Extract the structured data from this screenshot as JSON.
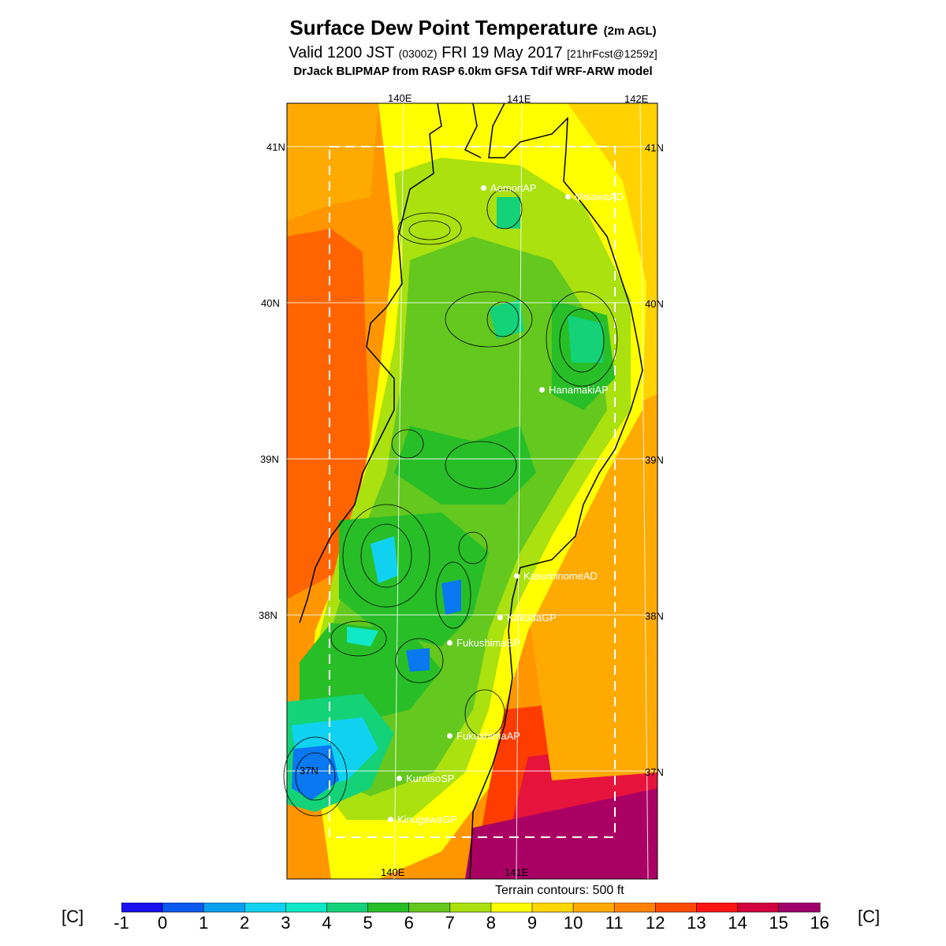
{
  "title": {
    "main": "Surface Dew Point Temperature",
    "main_suffix": "(2m AGL)",
    "valid_prefix": "Valid 1200 JST",
    "valid_utc": "(0300Z)",
    "valid_date": "FRI 19 May 2017",
    "forecast": "[21hrFcst@1259z]",
    "model": "DrJack BLIPMAP from RASP 6.0km GFSA Tdif WRF-ARW model"
  },
  "axes": {
    "top_lon_labels": [
      "140E",
      "141E",
      "142E"
    ],
    "bottom_lon_labels": [
      "140E",
      "141E"
    ],
    "left_lat_labels": [
      "41N",
      "40N",
      "39N",
      "38N",
      "37N"
    ],
    "right_lat_labels": [
      "41N",
      "40N",
      "39N",
      "38N",
      "37N"
    ]
  },
  "stations": [
    {
      "name": "AomoriAP"
    },
    {
      "name": "MisawaAD"
    },
    {
      "name": "HanamakiAP"
    },
    {
      "name": "KasuminomeAD"
    },
    {
      "name": "KakudaGP"
    },
    {
      "name": "FukushimaSP"
    },
    {
      "name": "FukushimaAP"
    },
    {
      "name": "KuroisoSP"
    },
    {
      "name": "KinugawaGP"
    }
  ],
  "terrain_note": "Terrain contours: 500 ft",
  "colorbar": {
    "unit_left": "[C]",
    "unit_right": "[C]",
    "labels": [
      "-1",
      "0",
      "1",
      "2",
      "3",
      "4",
      "5",
      "6",
      "7",
      "8",
      "9",
      "10",
      "11",
      "12",
      "13",
      "14",
      "15",
      "16"
    ],
    "colors": [
      "#1a10f0",
      "#0a5af0",
      "#0aa0f0",
      "#10d2f0",
      "#10e8c8",
      "#14d278",
      "#28be28",
      "#64c81e",
      "#aae10f",
      "#ffff00",
      "#ffd700",
      "#ffaa00",
      "#ff8200",
      "#ff4b00",
      "#ff1414",
      "#d2003c",
      "#a0006e"
    ]
  }
}
